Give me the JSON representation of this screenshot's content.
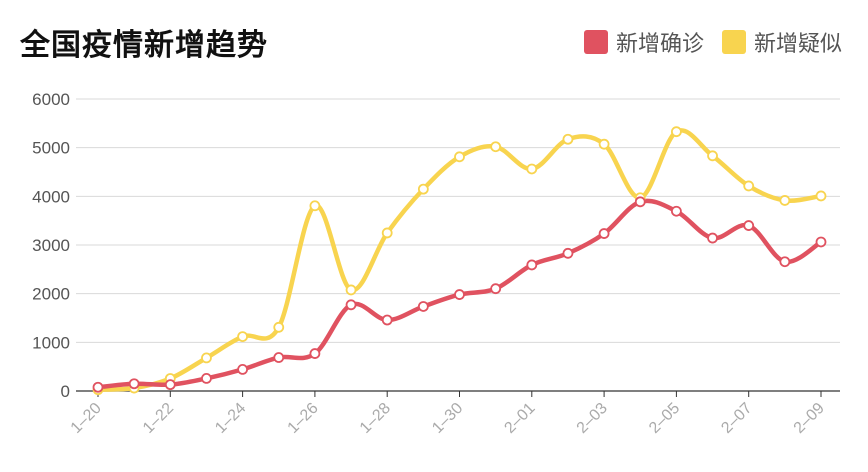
{
  "chart_data": {
    "type": "line",
    "title": "全国疫情新增趋势",
    "xlabel": "",
    "ylabel": "",
    "ylim": [
      0,
      6000
    ],
    "yticks": [
      0,
      1000,
      2000,
      3000,
      4000,
      5000,
      6000
    ],
    "grid": true,
    "legend_position": "top-right",
    "x": [
      "1-20",
      "1-21",
      "1-22",
      "1-23",
      "1-24",
      "1-25",
      "1-26",
      "1-27",
      "1-28",
      "1-29",
      "1-30",
      "1-31",
      "2-01",
      "2-02",
      "2-03",
      "2-04",
      "2-05",
      "2-06",
      "2-07",
      "2-08",
      "2-09"
    ],
    "xtick_labels": [
      "1–20",
      "1–22",
      "1–24",
      "1–26",
      "1–28",
      "1–30",
      "2–01",
      "2–03",
      "2–05",
      "2–07",
      "2–09"
    ],
    "series": [
      {
        "name": "新增确诊",
        "color": "#e05260",
        "values": [
          77,
          149,
          131,
          259,
          444,
          688,
          769,
          1771,
          1459,
          1737,
          1982,
          2102,
          2590,
          2829,
          3235,
          3887,
          3694,
          3143,
          3399,
          2656,
          3062
        ]
      },
      {
        "name": "新增疑似",
        "color": "#f8d44f",
        "values": [
          27,
          60,
          257,
          680,
          1118,
          1309,
          3806,
          2077,
          3248,
          4148,
          4812,
          5019,
          4562,
          5173,
          5072,
          3971,
          5328,
          4833,
          4214,
          3916,
          4008
        ]
      }
    ]
  }
}
